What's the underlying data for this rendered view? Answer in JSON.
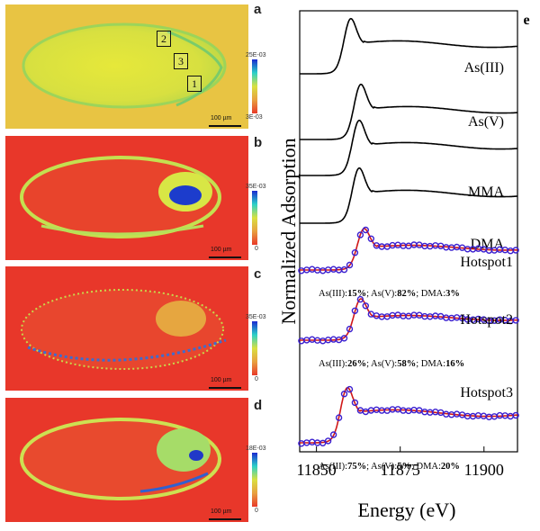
{
  "panels": [
    {
      "label": "a",
      "cbar_top": "25E-03",
      "cbar_bottom": "3E-03",
      "scale": "100 µm",
      "rois": [
        "2",
        "3",
        "1"
      ]
    },
    {
      "label": "b",
      "cbar_top": "35E-03",
      "cbar_bottom": "0",
      "scale": "100 µm"
    },
    {
      "label": "c",
      "cbar_top": "35E-03",
      "cbar_bottom": "0",
      "scale": "100 µm"
    },
    {
      "label": "d",
      "cbar_top": "18E-03",
      "cbar_bottom": "0",
      "scale": "100 µm"
    }
  ],
  "chart_data": {
    "type": "line",
    "panel_label": "e",
    "xlabel": "Energy (eV)",
    "ylabel": "Normalized Adsorption",
    "xlim": [
      11845,
      11910
    ],
    "x_ticks": [
      11850,
      11875,
      11900
    ],
    "series": [
      {
        "name": "As(III)",
        "peak": 11860,
        "style": "line",
        "color": "#000000"
      },
      {
        "name": "As(V)",
        "peak": 11863,
        "style": "line",
        "color": "#000000"
      },
      {
        "name": "MMA",
        "peak": 11862.5,
        "style": "line",
        "color": "#000000"
      },
      {
        "name": "DMA",
        "peak": 11862.5,
        "style": "line",
        "color": "#000000"
      },
      {
        "name": "Hotspot1",
        "peak": 11864,
        "style": "data+fit",
        "data_color": "#3a1fd0",
        "fit_color": "#d01818",
        "fit_text": [
          "As(III):",
          "15%",
          "; As(V):",
          "82%",
          "; DMA:",
          "3%"
        ]
      },
      {
        "name": "Hotspot2",
        "peak": 11863,
        "style": "data+fit",
        "data_color": "#3a1fd0",
        "fit_color": "#d01818",
        "fit_text": [
          "As(III):",
          "26%",
          "; As(V):",
          "58%",
          "; DMA:",
          "16%"
        ]
      },
      {
        "name": "Hotspot3",
        "peak": 11859,
        "style": "data+fit",
        "data_color": "#3a1fd0",
        "fit_color": "#d01818",
        "fit_text": [
          "As(III):",
          "75%",
          "; As(V):",
          "5%",
          "; DMA:",
          "20%"
        ]
      }
    ]
  }
}
